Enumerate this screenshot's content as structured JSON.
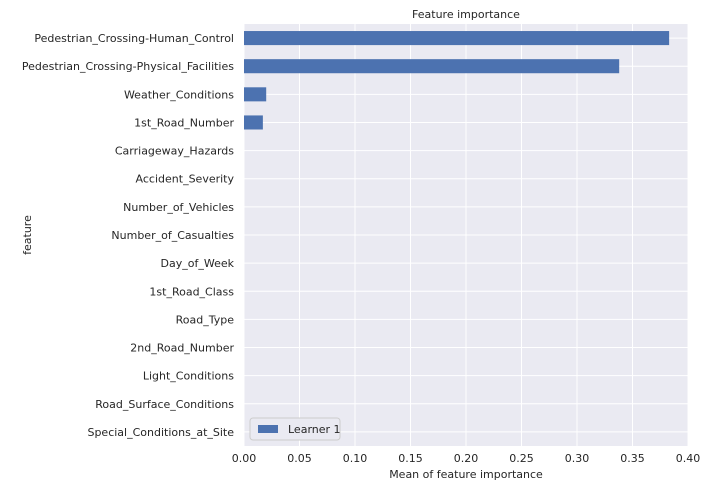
{
  "chart_data": {
    "type": "bar",
    "orientation": "horizontal",
    "title": "Feature importance",
    "xlabel": "Mean of feature importance",
    "ylabel": "feature",
    "xlim": [
      0.0,
      0.4
    ],
    "xticks": [
      0.0,
      0.05,
      0.1,
      0.15,
      0.2,
      0.25,
      0.3,
      0.35,
      0.4
    ],
    "xtick_labels": [
      "0.00",
      "0.05",
      "0.10",
      "0.15",
      "0.20",
      "0.25",
      "0.30",
      "0.35",
      "0.40"
    ],
    "grid": true,
    "legend_position": "lower-left",
    "categories": [
      "Pedestrian_Crossing-Human_Control",
      "Pedestrian_Crossing-Physical_Facilities",
      "Weather_Conditions",
      "1st_Road_Number",
      "Carriageway_Hazards",
      "Accident_Severity",
      "Number_of_Vehicles",
      "Number_of_Casualties",
      "Day_of_Week",
      "1st_Road_Class",
      "Road_Type",
      "2nd_Road_Number",
      "Light_Conditions",
      "Road_Surface_Conditions",
      "Special_Conditions_at_Site"
    ],
    "series": [
      {
        "name": "Learner 1",
        "color": "#4c72b0",
        "values": [
          0.383,
          0.338,
          0.02,
          0.017,
          0,
          0,
          0,
          0,
          0,
          0,
          0,
          0,
          0,
          0,
          0
        ]
      }
    ]
  }
}
